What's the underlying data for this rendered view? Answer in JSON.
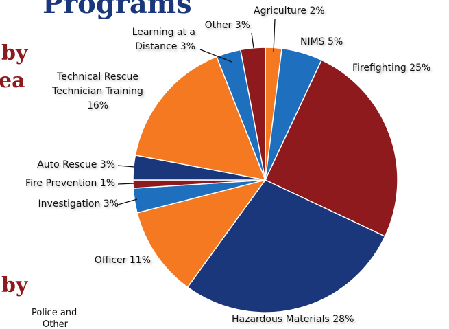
{
  "fragments": [
    "Programs",
    "by",
    "ea",
    "by",
    "Police and",
    "Other"
  ],
  "chart_data": {
    "type": "pie",
    "categories": [
      "Agriculture",
      "NIMS",
      "Firefighting",
      "Hazardous Materials",
      "Officer",
      "Investigation",
      "Fire Prevention",
      "Auto Rescue",
      "Technical Rescue Technician Training",
      "Learning at a Distance",
      "Other"
    ],
    "values": [
      2,
      5,
      25,
      28,
      11,
      3,
      1,
      3,
      16,
      3,
      3
    ],
    "value_labels": [
      "2%",
      "5%",
      "25%",
      "28%",
      "11%",
      "3%",
      "1%",
      "3%",
      "16%",
      "3%",
      "3%"
    ],
    "colors": [
      "#f47920",
      "#1f6fbf",
      "#8e1a1d",
      "#1a377b",
      "#f47920",
      "#1f6fbf",
      "#8e1a1d",
      "#1a377b",
      "#f47920",
      "#1f6fbf",
      "#8e1a1d"
    ]
  }
}
